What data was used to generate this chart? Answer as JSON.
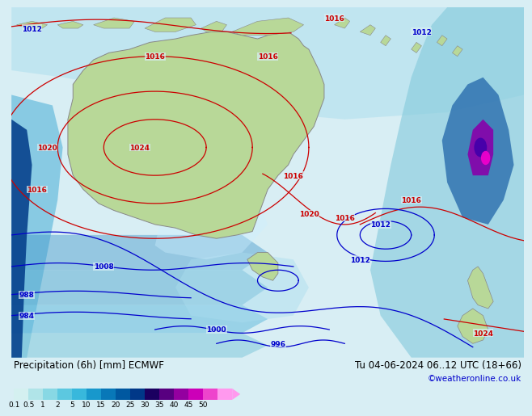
{
  "title_left": "Precipitation (6h) [mm] ECMWF",
  "title_right": "Tu 04-06-2024 06..12 UTC (18+66)",
  "credit": "©weatheronline.co.uk",
  "colorbar_labels": [
    "0.1",
    "0.5",
    "1",
    "2",
    "5",
    "10",
    "15",
    "20",
    "25",
    "30",
    "35",
    "40",
    "45",
    "50"
  ],
  "colorbar_colors": [
    "#d4f0f0",
    "#b0e4e8",
    "#88d8e4",
    "#5cc8e0",
    "#38b8dc",
    "#1898cc",
    "#0878b8",
    "#0058a0",
    "#003888",
    "#1a0060",
    "#580080",
    "#9400a0",
    "#cc00b8",
    "#ee44cc",
    "#ff99ee"
  ],
  "ocean_color": "#d8eef4",
  "land_color": "#b8d898",
  "land_border": "#888888",
  "fig_bg": "#d8eef4",
  "title_color": "#000000",
  "credit_color": "#0000cc",
  "font_size_title": 8.5,
  "font_size_credit": 7.5,
  "font_size_cb_label": 6.5,
  "font_size_isobar": 6.5,
  "isobar_red": "#cc0000",
  "isobar_blue": "#0000cc"
}
